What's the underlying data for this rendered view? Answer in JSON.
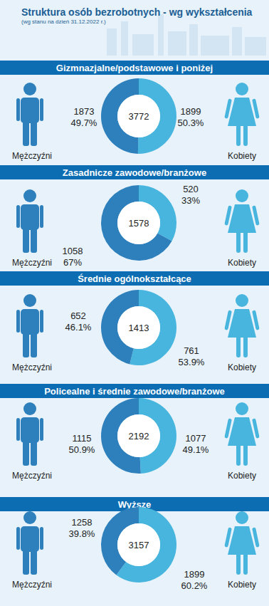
{
  "title": "Struktura osób bezrobotnych - wg wykształcenia",
  "subtitle": "(wg stanu na dzień 31.12.2022 r.)",
  "chart_data": [
    {
      "type": "pie",
      "title": "Gizmnazjalne/podstawowe i poniżej",
      "categories": [
        "Mężczyźni",
        "Kobiety"
      ],
      "values": [
        1873,
        1899
      ],
      "percent_labels": [
        "49.7%",
        "50.3%"
      ],
      "total": 3772,
      "colors": [
        "#2d80bc",
        "#47b5de"
      ],
      "data_labels": true
    },
    {
      "type": "pie",
      "title": "Zasadnicze zawodowe/branżowe",
      "categories": [
        "Mężczyźni",
        "Kobiety"
      ],
      "values": [
        1058,
        520
      ],
      "percent_labels": [
        "67%",
        "33%"
      ],
      "total": 1578,
      "colors": [
        "#2d80bc",
        "#47b5de"
      ],
      "data_labels": true
    },
    {
      "type": "pie",
      "title": "Średnie ogólnokształcące",
      "categories": [
        "Mężczyźni",
        "Kobiety"
      ],
      "values": [
        652,
        761
      ],
      "percent_labels": [
        "46.1%",
        "53.9%"
      ],
      "total": 1413,
      "colors": [
        "#2d80bc",
        "#47b5de"
      ],
      "data_labels": true
    },
    {
      "type": "pie",
      "title": "Policealne i średnie zawodowe/branżowe",
      "categories": [
        "Mężczyźni",
        "Kobiety"
      ],
      "values": [
        1115,
        1077
      ],
      "percent_labels": [
        "50.9%",
        "49.1%"
      ],
      "total": 2192,
      "colors": [
        "#2d80bc",
        "#47b5de"
      ],
      "data_labels": true
    },
    {
      "type": "pie",
      "title": "Wyższe",
      "categories": [
        "Mężczyźni",
        "Kobiety"
      ],
      "values": [
        1258,
        1899
      ],
      "percent_labels": [
        "39.8%",
        "60.2%"
      ],
      "total": 3157,
      "colors": [
        "#2d80bc",
        "#47b5de"
      ],
      "data_labels": true
    }
  ]
}
